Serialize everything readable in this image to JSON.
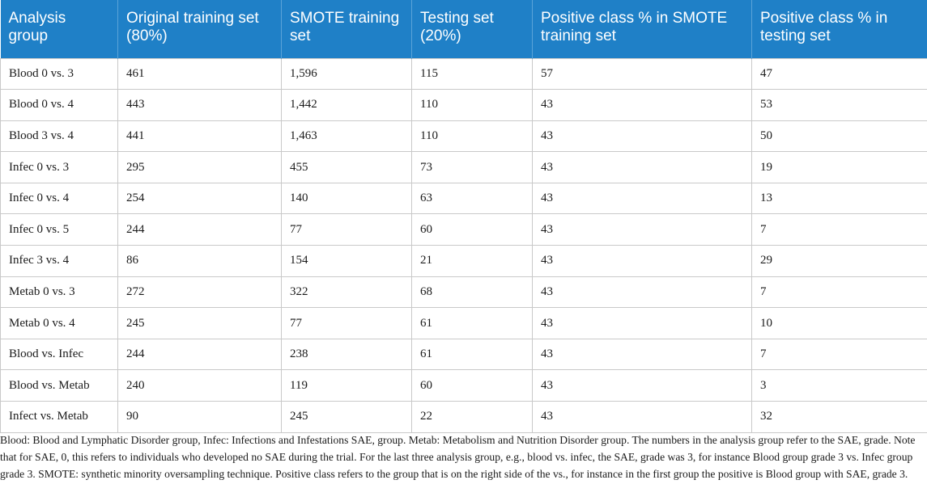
{
  "table": {
    "headers": [
      "Analysis group",
      "Original training set (80%)",
      "SMOTE training set",
      "Testing set (20%)",
      "Positive class % in SMOTE training set",
      "Positive class % in testing set"
    ],
    "rows": [
      [
        "Blood 0 vs. 3",
        "461",
        "1,596",
        "115",
        "57",
        "47"
      ],
      [
        "Blood 0 vs. 4",
        "443",
        "1,442",
        "110",
        "43",
        "53"
      ],
      [
        "Blood 3 vs. 4",
        "441",
        "1,463",
        "110",
        "43",
        "50"
      ],
      [
        "Infec 0 vs. 3",
        "295",
        "455",
        "73",
        "43",
        "19"
      ],
      [
        "Infec 0 vs. 4",
        "254",
        "140",
        "63",
        "43",
        "13"
      ],
      [
        "Infec 0 vs. 5",
        "244",
        "77",
        "60",
        "43",
        "7"
      ],
      [
        "Infec 3 vs. 4",
        "86",
        "154",
        "21",
        "43",
        "29"
      ],
      [
        "Metab 0 vs. 3",
        "272",
        "322",
        "68",
        "43",
        "7"
      ],
      [
        "Metab 0 vs. 4",
        "245",
        "77",
        "61",
        "43",
        "10"
      ],
      [
        "Blood vs. Infec",
        "244",
        "238",
        "61",
        "43",
        "7"
      ],
      [
        "Blood vs. Metab",
        "240",
        "119",
        "60",
        "43",
        "3"
      ],
      [
        "Infect vs. Metab",
        "90",
        "245",
        "22",
        "43",
        "32"
      ]
    ]
  },
  "footnote": "Blood: Blood and Lymphatic Disorder group, Infec: Infections and Infestations SAE, group. Metab: Metabolism and Nutrition Disorder group. The numbers in the analysis group refer to the SAE, grade. Note that for SAE, 0, this refers to individuals who developed no SAE during the trial. For the last three analysis group, e.g., blood vs. infec, the SAE, grade was 3, for instance Blood group grade 3 vs. Infec group grade 3. SMOTE: synthetic minority oversampling technique. Positive class refers to the group that is on the right side of the vs., for instance in the first group the positive is Blood group with SAE, grade 3.",
  "colors": {
    "header_bg": "#1f80c7",
    "header_text": "#ffffff",
    "grid": "#c9c9c9"
  }
}
